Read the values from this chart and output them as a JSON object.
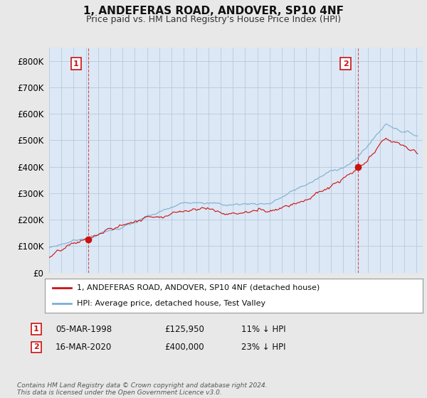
{
  "title": "1, ANDEFERAS ROAD, ANDOVER, SP10 4NF",
  "subtitle": "Price paid vs. HM Land Registry's House Price Index (HPI)",
  "title_fontsize": 11,
  "subtitle_fontsize": 9,
  "ylabel_ticks": [
    "£0",
    "£100K",
    "£200K",
    "£300K",
    "£400K",
    "£500K",
    "£600K",
    "£700K",
    "£800K"
  ],
  "ytick_values": [
    0,
    100000,
    200000,
    300000,
    400000,
    500000,
    600000,
    700000,
    800000
  ],
  "ylim": [
    0,
    850000
  ],
  "xlim_start": 1995.0,
  "xlim_end": 2025.5,
  "background_color": "#e8e8e8",
  "plot_bg_color": "#dce8f5",
  "grid_color": "#b0c4d8",
  "hpi_color": "#7bafd4",
  "price_color": "#cc1111",
  "sale1_year": 1998.18,
  "sale1_price": 125950,
  "sale2_year": 2020.21,
  "sale2_price": 400000,
  "legend_label_price": "1, ANDEFERAS ROAD, ANDOVER, SP10 4NF (detached house)",
  "legend_label_hpi": "HPI: Average price, detached house, Test Valley",
  "table_row1": [
    "1",
    "05-MAR-1998",
    "£125,950",
    "11% ↓ HPI"
  ],
  "table_row2": [
    "2",
    "16-MAR-2020",
    "£400,000",
    "23% ↓ HPI"
  ],
  "footer": "Contains HM Land Registry data © Crown copyright and database right 2024.\nThis data is licensed under the Open Government Licence v3.0."
}
